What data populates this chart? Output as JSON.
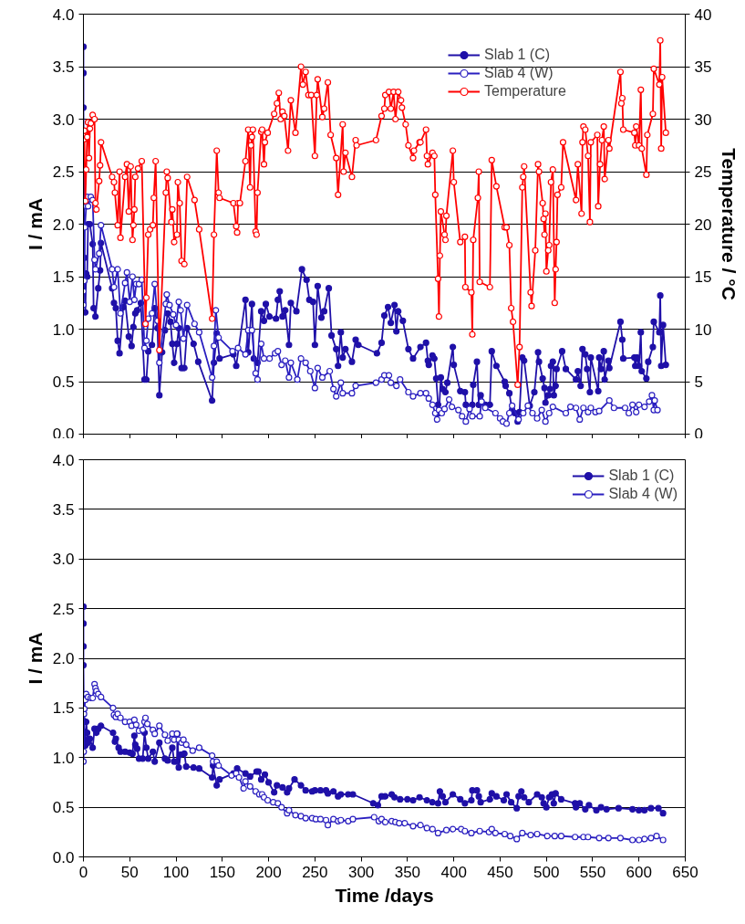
{
  "chart_data": [
    {
      "type": "line",
      "ylabel": "I / mA",
      "y2label": "Temperature / °C",
      "xlim": [
        0,
        650
      ],
      "xticks": [
        0,
        50,
        100,
        150,
        200,
        250,
        300,
        350,
        400,
        450,
        500,
        550,
        600,
        650
      ],
      "tick_labels": "y",
      "ylim": [
        0,
        4
      ],
      "yticks": [
        {
          "value": 0,
          "label": "0.0"
        },
        {
          "value": 0.5,
          "label": "0.5"
        },
        {
          "value": 1,
          "label": "1.0"
        },
        {
          "value": 1.5,
          "label": "1.5"
        },
        {
          "value": 2,
          "label": "2.0"
        },
        {
          "value": 2.5,
          "label": "2.5"
        },
        {
          "value": 3,
          "label": "3.0"
        },
        {
          "value": 3.5,
          "label": "3.5"
        },
        {
          "value": 4,
          "label": "4.0"
        }
      ],
      "y2lim": [
        0,
        40
      ],
      "y2ticks": [
        0,
        5,
        10,
        15,
        20,
        25,
        30,
        35,
        40
      ],
      "grid": "y",
      "legend": "top right",
      "series": [
        {
          "name": "Slab 1 (C)",
          "color": "#1f10a8",
          "marker": "circle",
          "x": [
            0,
            0,
            0,
            1,
            2,
            3,
            4,
            5,
            7,
            10,
            11,
            13,
            16,
            18,
            19,
            31,
            33,
            35,
            37,
            39,
            43,
            45,
            49,
            52,
            54,
            56,
            58,
            62,
            66,
            68,
            70,
            74,
            77,
            80,
            82,
            85,
            88,
            91,
            94,
            96,
            98,
            101,
            103,
            106,
            109,
            112,
            119,
            124,
            139,
            141,
            144,
            147,
            162,
            165,
            175,
            178,
            182,
            184,
            188,
            192,
            195,
            197,
            201,
            208,
            210,
            212,
            215,
            218,
            222,
            224,
            230,
            236,
            241,
            244,
            248,
            250,
            253,
            257,
            260,
            265,
            268,
            273,
            275,
            278,
            280,
            283,
            290,
            294,
            297,
            317,
            322,
            325,
            329,
            332,
            336,
            338,
            340,
            345,
            351,
            356,
            364,
            370,
            372,
            373,
            377,
            379,
            381,
            383,
            384,
            386,
            388,
            391,
            393,
            399,
            400,
            407,
            412,
            413,
            420,
            421,
            425,
            427,
            429,
            434,
            439,
            441,
            446,
            455,
            456,
            460,
            463,
            466,
            469,
            471,
            474,
            476,
            482,
            487,
            491,
            492,
            496,
            498,
            499,
            502,
            504,
            505,
            507,
            508,
            510,
            511,
            517,
            521,
            532,
            534,
            537,
            539,
            542,
            544,
            547,
            548,
            556,
            557,
            559,
            562,
            563,
            567,
            568,
            580,
            582,
            583,
            595,
            596,
            598,
            600,
            602,
            603,
            608,
            610,
            615,
            616,
            622,
            623,
            624,
            626,
            629
          ],
          "values": [
            3.69,
            3.44,
            3.11,
            1.68,
            1.16,
            1.53,
            1.5,
            2.0,
            2.0,
            1.81,
            1.2,
            1.12,
            1.39,
            1.56,
            1.82,
            1.39,
            1.25,
            1.2,
            0.89,
            0.77,
            1.21,
            1.27,
            0.93,
            0.84,
            1.02,
            1.15,
            1.18,
            1.25,
            0.52,
            0.52,
            0.79,
            0.85,
            1.2,
            1.01,
            0.37,
            0.78,
            0.99,
            1.15,
            1.07,
            0.86,
            0.68,
            0.86,
            1.01,
            0.63,
            0.63,
            1.01,
            0.86,
            0.69,
            0.32,
            0.68,
            0.96,
            0.72,
            0.76,
            0.65,
            1.28,
            0.78,
            1.24,
            0.72,
            0.68,
            1.17,
            1.08,
            1.24,
            1.12,
            1.1,
            1.28,
            1.36,
            1.12,
            1.18,
            0.85,
            1.25,
            1.17,
            1.57,
            1.47,
            1.28,
            1.26,
            0.85,
            1.41,
            1.11,
            1.17,
            1.39,
            0.94,
            0.81,
            0.65,
            0.97,
            0.73,
            0.81,
            0.69,
            0.9,
            0.85,
            0.77,
            0.87,
            1.13,
            1.21,
            1.06,
            1.23,
            0.98,
            1.17,
            1.08,
            0.81,
            0.72,
            0.83,
            0.87,
            0.7,
            0.66,
            0.75,
            0.72,
            0.53,
            0.28,
            0.2,
            0.54,
            0.43,
            0.4,
            0.49,
            0.83,
            0.66,
            0.41,
            0.4,
            0.28,
            0.28,
            0.47,
            0.69,
            0.28,
            0.37,
            0.28,
            0.28,
            0.79,
            0.65,
            0.5,
            0.46,
            0.39,
            0.23,
            0.2,
            0.12,
            0.21,
            0.73,
            0.7,
            0.27,
            0.4,
            0.78,
            0.69,
            0.53,
            0.44,
            0.3,
            0.37,
            0.43,
            0.65,
            0.69,
            0.37,
            0.46,
            0.62,
            0.79,
            0.62,
            0.52,
            0.6,
            0.46,
            0.81,
            0.76,
            0.62,
            0.4,
            0.73,
            0.41,
            0.73,
            0.62,
            0.79,
            0.52,
            0.7,
            0.63,
            1.07,
            0.9,
            0.72,
            0.73,
            0.65,
            0.73,
            0.65,
            0.97,
            0.6,
            0.53,
            0.69,
            0.83,
            1.07,
            0.97,
            1.32,
            0.65,
            1.04,
            0.66
          ]
        },
        {
          "name": "Slab 4 (W)",
          "color": "#2a1fc0",
          "marker": "circle_open",
          "x": [
            0,
            0,
            0,
            1,
            1.5,
            3,
            4,
            5,
            8,
            10,
            12,
            13,
            17,
            19,
            31,
            33,
            37,
            40,
            45,
            47,
            50,
            53,
            55,
            57,
            60,
            63,
            66,
            68,
            70,
            74,
            77,
            80,
            82,
            89,
            90,
            93,
            97,
            100,
            103,
            105,
            108,
            112,
            120,
            125,
            139,
            141,
            143,
            146,
            161,
            167,
            175,
            178,
            182,
            186,
            188,
            192,
            195,
            201,
            207,
            210,
            214,
            218,
            222,
            224,
            231,
            235,
            240,
            245,
            250,
            253,
            258,
            266,
            270,
            273,
            278,
            280,
            290,
            294,
            316,
            322,
            325,
            330,
            332,
            338,
            342,
            351,
            356,
            364,
            370,
            373,
            377,
            380,
            382,
            384,
            387,
            390,
            395,
            398,
            405,
            409,
            413,
            417,
            420,
            428,
            430,
            434,
            445,
            450,
            453,
            457,
            460,
            463,
            470,
            475,
            480,
            485,
            490,
            495,
            499,
            503,
            507,
            521,
            526,
            532,
            536,
            540,
            545,
            548,
            553,
            557,
            568,
            573,
            585,
            589,
            593,
            597,
            600,
            606,
            611,
            614,
            616,
            617,
            620
          ],
          "values": [
            1.24,
            1.36,
            1.23,
            1.46,
            1.97,
            2.17,
            2.26,
            2.17,
            2.26,
            2.23,
            1.66,
            1.57,
            1.72,
            1.99,
            1.57,
            1.4,
            1.57,
            1.15,
            1.44,
            1.54,
            1.26,
            1.5,
            1.28,
            1.43,
            1.43,
            1.47,
            0.82,
            0.89,
            1.1,
            1.15,
            1.43,
            1.08,
            0.68,
            1.24,
            1.33,
            1.23,
            1.14,
            1.04,
            1.26,
            1.18,
            0.91,
            1.23,
            1.05,
            0.97,
            0.54,
            0.84,
            1.18,
            0.92,
            0.79,
            0.82,
            0.76,
            0.99,
            0.99,
            0.58,
            0.52,
            0.86,
            0.72,
            0.72,
            0.77,
            0.79,
            0.66,
            0.7,
            0.54,
            0.68,
            0.52,
            0.72,
            0.68,
            0.6,
            0.44,
            0.63,
            0.54,
            0.6,
            0.43,
            0.36,
            0.49,
            0.39,
            0.39,
            0.46,
            0.49,
            0.52,
            0.56,
            0.56,
            0.49,
            0.46,
            0.52,
            0.4,
            0.36,
            0.39,
            0.39,
            0.34,
            0.28,
            0.2,
            0.14,
            0.23,
            0.2,
            0.24,
            0.33,
            0.26,
            0.23,
            0.17,
            0.12,
            0.24,
            0.17,
            0.17,
            0.31,
            0.25,
            0.2,
            0.15,
            0.12,
            0.1,
            0.2,
            0.27,
            0.14,
            0.2,
            0.27,
            0.2,
            0.15,
            0.23,
            0.12,
            0.2,
            0.26,
            0.2,
            0.26,
            0.25,
            0.14,
            0.25,
            0.21,
            0.25,
            0.21,
            0.22,
            0.32,
            0.25,
            0.25,
            0.2,
            0.28,
            0.21,
            0.28,
            0.26,
            0.31,
            0.37,
            0.23,
            0.32,
            0.23
          ]
        },
        {
          "name": "Temperature",
          "color": "#ff0000",
          "marker": "circle_open",
          "axis": "y2",
          "x": [
            0,
            1,
            1,
            2,
            3,
            4,
            5,
            6,
            7,
            8,
            10,
            12,
            13,
            14,
            17,
            18,
            19,
            31,
            33,
            34,
            37,
            39,
            40,
            45,
            47,
            49,
            51,
            53,
            54,
            55,
            56,
            59,
            63,
            67,
            68,
            70,
            72,
            75,
            76,
            78,
            82,
            89,
            90,
            91,
            95,
            96,
            98,
            101,
            102,
            104,
            106,
            109,
            112,
            120,
            125,
            139,
            141,
            144,
            146,
            147,
            162,
            165,
            166,
            167,
            169,
            175,
            178,
            180,
            181,
            182,
            183,
            186,
            187,
            188,
            192,
            193,
            195,
            196,
            199,
            206,
            209,
            211,
            213,
            215,
            217,
            221,
            224,
            229,
            235,
            237,
            240,
            243,
            246,
            250,
            252,
            253,
            258,
            260,
            264,
            267,
            273,
            275,
            280,
            281,
            283,
            290,
            294,
            295,
            316,
            322,
            325,
            326,
            330,
            332,
            335,
            337,
            340,
            343,
            344,
            348,
            351,
            356,
            357,
            363,
            364,
            370,
            371,
            372,
            377,
            379,
            380,
            383,
            384,
            385,
            386,
            390,
            391,
            392,
            399,
            400,
            407,
            412,
            412.5,
            419,
            420,
            421,
            426,
            427,
            428,
            439,
            441,
            446,
            455,
            457,
            460,
            462,
            464,
            469,
            471,
            474,
            475,
            476,
            483,
            484,
            488,
            491,
            492,
            496,
            497,
            498,
            499,
            500,
            502,
            503,
            505,
            507,
            509,
            510,
            511,
            512,
            516,
            518,
            532,
            534,
            538,
            539,
            540,
            542,
            545,
            547,
            548,
            555,
            556,
            558,
            560,
            562,
            563,
            567,
            568,
            580,
            581,
            582,
            583,
            595,
            596,
            597,
            600,
            602,
            603,
            608,
            609,
            615,
            616,
            622,
            623,
            624,
            625,
            629
          ],
          "values": [
            28.4,
            28.9,
            28.1,
            22.2,
            25.2,
            28.3,
            29.7,
            26.3,
            29.1,
            29.6,
            30.4,
            30.0,
            22.0,
            21.4,
            24.1,
            25.6,
            27.8,
            24.5,
            24.0,
            23.0,
            19.9,
            25.0,
            18.7,
            24.5,
            25.7,
            21.2,
            25.5,
            18.5,
            19.9,
            21.4,
            24.5,
            25.3,
            26.0,
            10.5,
            13.0,
            19.0,
            19.5,
            19.9,
            22.5,
            26.0,
            8.0,
            23.0,
            25.0,
            24.4,
            20.2,
            21.4,
            18.3,
            19.0,
            24.0,
            22.0,
            16.5,
            16.2,
            24.5,
            22.3,
            19.5,
            11.0,
            19.0,
            27.0,
            23.0,
            22.5,
            22.0,
            19.8,
            19.2,
            22.0,
            22.0,
            26.0,
            29.0,
            23.5,
            27.5,
            28.3,
            29.0,
            19.3,
            19.0,
            23.0,
            28.8,
            29.0,
            25.7,
            27.8,
            28.7,
            30.5,
            31.5,
            32.5,
            30.0,
            30.7,
            30.3,
            27.0,
            31.8,
            28.7,
            35.0,
            33.3,
            34.5,
            32.3,
            32.3,
            26.5,
            32.3,
            33.8,
            30.2,
            31.0,
            33.5,
            28.5,
            26.3,
            22.8,
            29.5,
            25.0,
            26.8,
            24.5,
            28.0,
            27.5,
            28.0,
            30.3,
            31.0,
            32.3,
            32.6,
            31.0,
            32.6,
            30.0,
            32.6,
            31.8,
            31.1,
            29.5,
            27.5,
            26.3,
            27.0,
            27.8,
            27.8,
            29.0,
            26.5,
            25.7,
            26.8,
            26.5,
            22.8,
            14.8,
            11.2,
            17.0,
            21.2,
            19.0,
            18.5,
            20.8,
            27.0,
            24.0,
            18.3,
            18.8,
            14.0,
            13.5,
            9.5,
            18.5,
            22.5,
            25.0,
            14.5,
            14.0,
            26.1,
            23.6,
            19.7,
            19.7,
            18.0,
            12.0,
            10.7,
            4.7,
            8.3,
            23.5,
            24.5,
            25.5,
            13.5,
            12.2,
            17.5,
            25.7,
            25.0,
            22.0,
            20.5,
            19.0,
            21.0,
            15.5,
            17.5,
            18.0,
            24.0,
            25.2,
            12.5,
            15.7,
            18.3,
            22.8,
            23.5,
            27.8,
            22.3,
            25.7,
            21.0,
            27.8,
            29.3,
            29.0,
            26.5,
            20.2,
            27.8,
            28.5,
            21.7,
            25.7,
            28.0,
            29.3,
            24.3,
            28.0,
            27.2,
            34.5,
            31.5,
            32.0,
            29.0,
            28.7,
            27.5,
            29.3,
            27.5,
            32.8,
            27.2,
            24.7,
            28.5,
            30.5,
            34.8,
            33.3,
            37.5,
            27.2,
            34.0,
            28.7
          ]
        }
      ]
    },
    {
      "type": "line",
      "ylabel": "I / mA",
      "xlabel": "Time /days",
      "xlim": [
        0,
        650
      ],
      "xticks": [
        0,
        50,
        100,
        150,
        200,
        250,
        300,
        350,
        400,
        450,
        500,
        550,
        600,
        650
      ],
      "ylim": [
        0,
        4
      ],
      "yticks": [
        {
          "value": 0,
          "label": "0.0"
        },
        {
          "value": 0.5,
          "label": "0.5"
        },
        {
          "value": 1,
          "label": "1.0"
        },
        {
          "value": 1.5,
          "label": "1.5"
        },
        {
          "value": 2,
          "label": "2.0"
        },
        {
          "value": 2.5,
          "label": "2.5"
        },
        {
          "value": 3,
          "label": "3.0"
        },
        {
          "value": 3.5,
          "label": "3.5"
        },
        {
          "value": 4,
          "label": "4.0"
        }
      ],
      "grid": "y",
      "legend": "top right",
      "series": [
        {
          "name": "Slab 1 (C)",
          "color": "#1f10a8",
          "marker": "circle",
          "x": [
            0,
            0,
            0,
            0,
            0.5,
            1,
            1.5,
            2,
            3,
            4,
            5,
            7,
            10,
            12,
            14,
            16,
            19,
            32,
            34,
            35,
            38,
            40,
            45,
            50,
            53,
            55,
            56,
            58,
            60,
            64,
            66,
            68,
            70,
            75,
            77,
            82,
            88,
            91,
            96,
            98,
            101,
            101.5,
            103,
            105,
            109,
            111,
            119,
            125,
            139,
            140,
            144,
            147,
            162,
            166,
            175,
            180,
            187,
            189,
            192,
            196,
            200,
            206,
            209,
            215,
            220,
            222,
            228,
            235,
            240,
            247,
            250,
            256,
            262,
            264,
            270,
            275,
            278,
            286,
            291,
            313,
            318,
            322,
            326,
            333,
            336,
            342,
            350,
            356,
            363,
            371,
            377,
            383,
            385,
            388,
            391,
            399,
            407,
            412,
            419,
            420,
            425,
            427,
            429,
            439,
            441,
            446,
            454,
            457,
            462,
            468,
            470,
            473,
            476,
            481,
            490,
            495,
            497,
            500,
            503,
            506,
            508,
            510,
            516,
            531,
            532,
            536,
            542,
            546,
            554,
            559,
            565,
            578,
            593,
            600,
            606,
            613,
            621,
            626
          ],
          "values": [
            2.52,
            2.35,
            2.12,
            1.93,
            1.37,
            1.18,
            1.26,
            1.12,
            1.36,
            1.25,
            1.15,
            1.19,
            1.1,
            1.29,
            1.25,
            1.29,
            1.32,
            1.25,
            1.16,
            1.19,
            1.1,
            1.06,
            1.06,
            1.05,
            1.04,
            1.22,
            1.13,
            1.09,
            0.99,
            0.99,
            1.25,
            1.1,
            0.99,
            1.06,
            0.96,
            1.15,
            0.99,
            0.97,
            1.1,
            0.96,
            0.96,
            1.24,
            0.9,
            1.03,
            1.04,
            0.91,
            0.9,
            0.89,
            0.8,
            0.92,
            0.72,
            0.78,
            0.84,
            0.89,
            0.84,
            0.81,
            0.86,
            0.86,
            0.78,
            0.83,
            0.75,
            0.65,
            0.72,
            0.7,
            0.65,
            0.69,
            0.78,
            0.72,
            0.67,
            0.66,
            0.67,
            0.67,
            0.67,
            0.64,
            0.66,
            0.61,
            0.63,
            0.63,
            0.63,
            0.54,
            0.52,
            0.61,
            0.61,
            0.63,
            0.6,
            0.58,
            0.58,
            0.57,
            0.6,
            0.57,
            0.55,
            0.54,
            0.66,
            0.61,
            0.55,
            0.63,
            0.58,
            0.54,
            0.57,
            0.67,
            0.67,
            0.61,
            0.55,
            0.58,
            0.64,
            0.61,
            0.57,
            0.63,
            0.55,
            0.49,
            0.61,
            0.66,
            0.6,
            0.55,
            0.63,
            0.6,
            0.54,
            0.5,
            0.6,
            0.63,
            0.54,
            0.64,
            0.58,
            0.54,
            0.5,
            0.54,
            0.48,
            0.52,
            0.47,
            0.5,
            0.48,
            0.49,
            0.48,
            0.47,
            0.47,
            0.49,
            0.49,
            0.44
          ]
        },
        {
          "name": "Slab 4 (W)",
          "color": "#2a1fc0",
          "marker": "circle_open",
          "x": [
            0,
            0.3,
            0.6,
            1,
            2,
            3,
            5,
            8,
            10,
            12,
            13,
            14,
            16,
            19,
            32,
            33,
            35,
            37,
            40,
            45,
            50,
            52,
            55,
            57,
            60,
            64,
            66,
            67,
            69,
            75,
            77,
            82,
            88,
            91,
            96,
            98,
            101,
            103,
            106,
            108,
            111,
            118,
            125,
            139,
            140,
            144,
            146,
            160,
            165,
            168,
            173,
            175,
            180,
            186,
            190,
            193,
            195,
            199,
            205,
            210,
            214,
            220,
            222,
            229,
            235,
            240,
            247,
            251,
            256,
            262,
            264,
            270,
            275,
            278,
            286,
            291,
            314,
            319,
            322,
            326,
            333,
            337,
            341,
            347,
            356,
            364,
            371,
            377,
            383,
            392,
            399,
            408,
            412,
            419,
            428,
            438,
            441,
            445,
            455,
            461,
            468,
            474,
            483,
            490,
            501,
            509,
            516,
            531,
            540,
            545,
            557,
            567,
            580,
            593,
            600,
            606,
            613,
            619,
            626
          ],
          "values": [
            0.96,
            1.06,
            1.44,
            1.49,
            1.58,
            1.64,
            1.61,
            1.6,
            1.6,
            1.74,
            1.7,
            1.67,
            1.64,
            1.61,
            1.5,
            1.43,
            1.41,
            1.44,
            1.4,
            1.36,
            1.36,
            1.32,
            1.38,
            1.33,
            1.27,
            1.28,
            1.36,
            1.4,
            1.34,
            1.28,
            1.24,
            1.32,
            1.23,
            1.17,
            1.24,
            1.18,
            1.24,
            1.18,
            1.15,
            1.18,
            1.13,
            1.07,
            1.1,
            1.02,
            0.96,
            0.96,
            0.92,
            0.82,
            0.84,
            0.8,
            0.69,
            0.76,
            0.71,
            0.66,
            0.63,
            0.63,
            0.6,
            0.57,
            0.55,
            0.54,
            0.5,
            0.44,
            0.47,
            0.42,
            0.41,
            0.39,
            0.39,
            0.38,
            0.38,
            0.37,
            0.32,
            0.38,
            0.36,
            0.37,
            0.36,
            0.38,
            0.4,
            0.36,
            0.38,
            0.35,
            0.36,
            0.35,
            0.34,
            0.34,
            0.31,
            0.32,
            0.29,
            0.28,
            0.24,
            0.27,
            0.28,
            0.28,
            0.26,
            0.24,
            0.26,
            0.25,
            0.28,
            0.24,
            0.23,
            0.21,
            0.18,
            0.24,
            0.22,
            0.23,
            0.21,
            0.21,
            0.21,
            0.2,
            0.2,
            0.2,
            0.19,
            0.19,
            0.19,
            0.17,
            0.17,
            0.18,
            0.19,
            0.21,
            0.17
          ]
        }
      ]
    }
  ]
}
